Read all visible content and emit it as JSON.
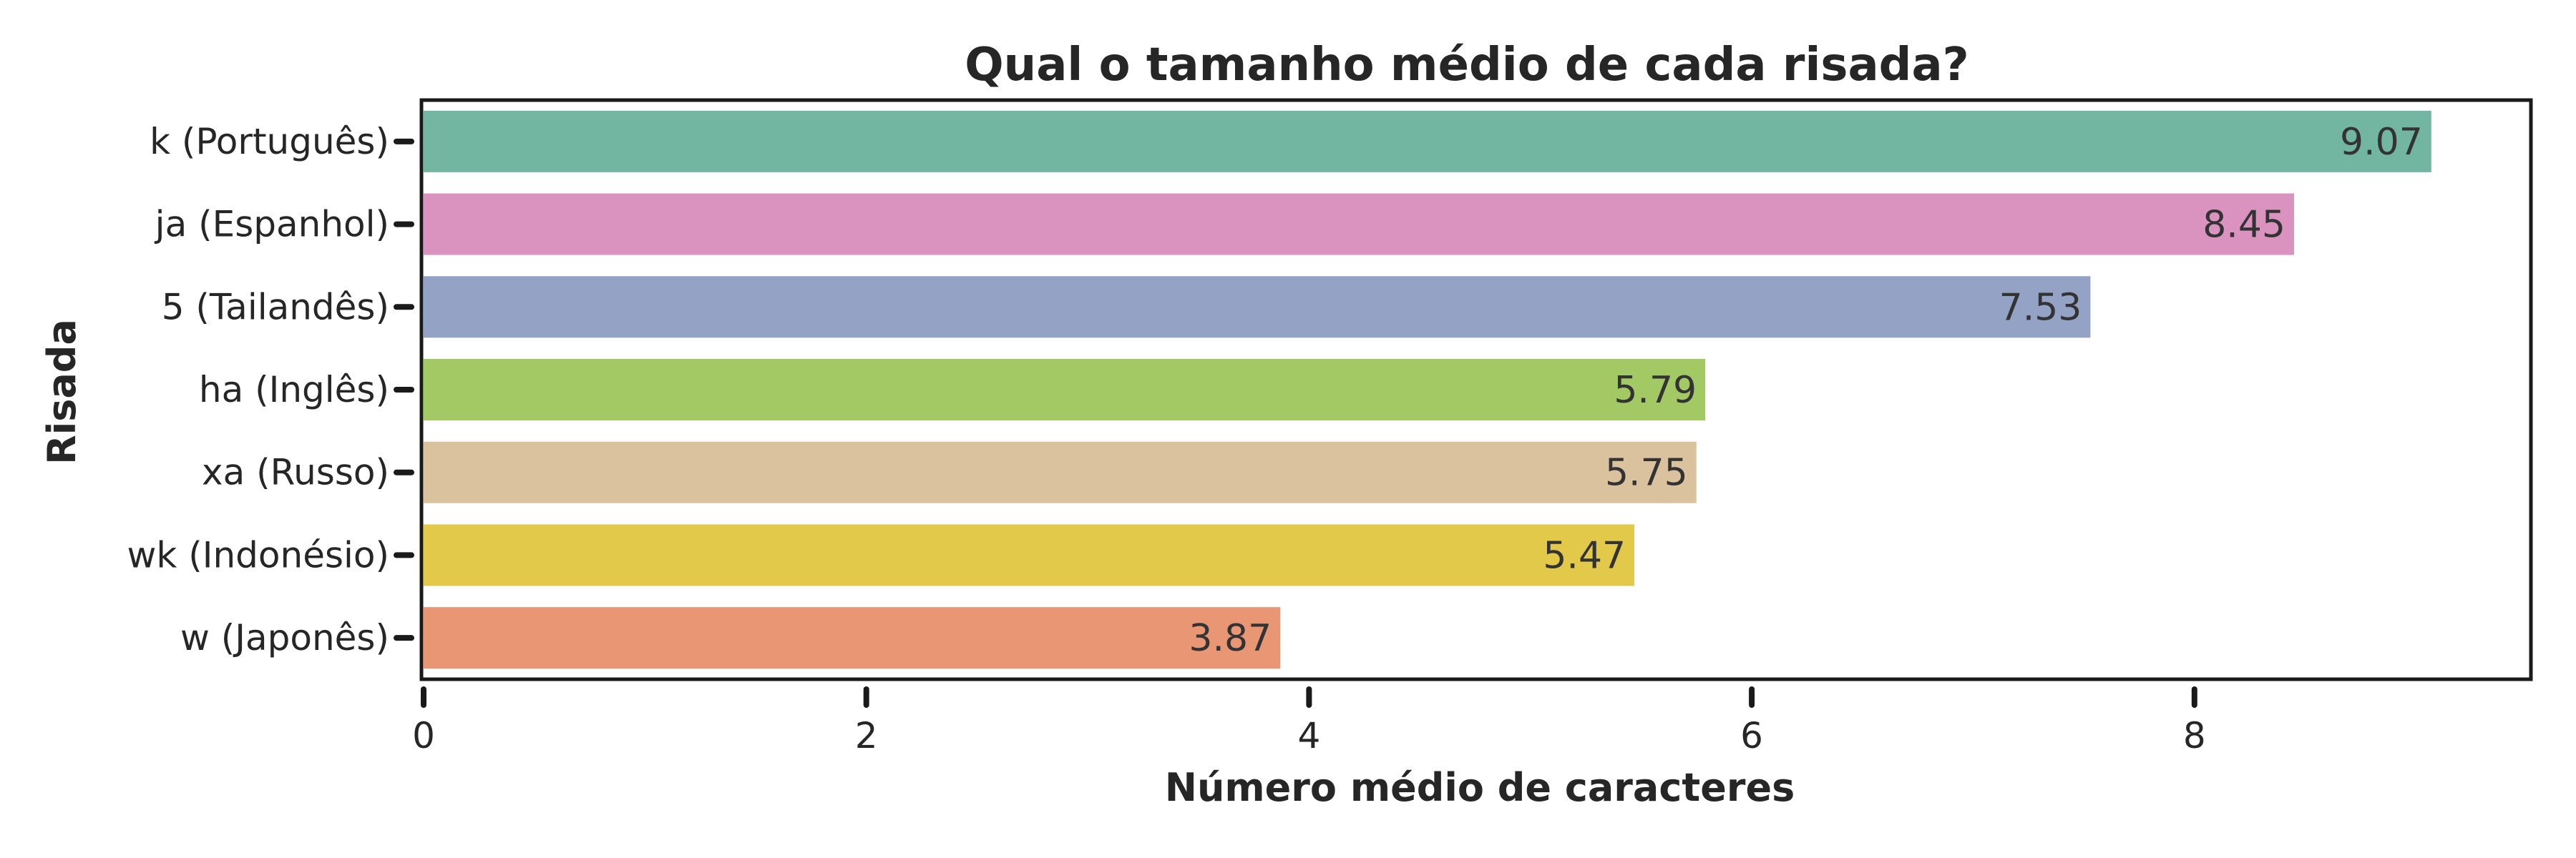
{
  "chart_data": {
    "type": "bar",
    "orientation": "horizontal",
    "title": "Qual o tamanho médio de cada risada?",
    "xlabel": "Número médio de caracteres",
    "ylabel": "Risada",
    "categories": [
      "k (Português)",
      "ja (Espanhol)",
      "5 (Tailandês)",
      "ha (Inglês)",
      "xa (Russo)",
      "wk (Indonésio)",
      "w (Japonês)"
    ],
    "values": [
      9.07,
      8.45,
      7.53,
      5.79,
      5.75,
      5.47,
      3.87
    ],
    "value_labels": [
      "9.07",
      "8.45",
      "7.53",
      "5.79",
      "5.75",
      "5.47",
      "3.87"
    ],
    "colors": [
      "#72b6a1",
      "#da93bf",
      "#94a3c5",
      "#a2c964",
      "#dbc29e",
      "#e3c94a",
      "#e99675"
    ],
    "xticks": [
      0,
      2,
      4,
      6,
      8
    ],
    "xtick_labels": [
      "0",
      "2",
      "4",
      "6",
      "8"
    ],
    "xlim": [
      0,
      9.52
    ],
    "grid": false,
    "legend": "none"
  }
}
